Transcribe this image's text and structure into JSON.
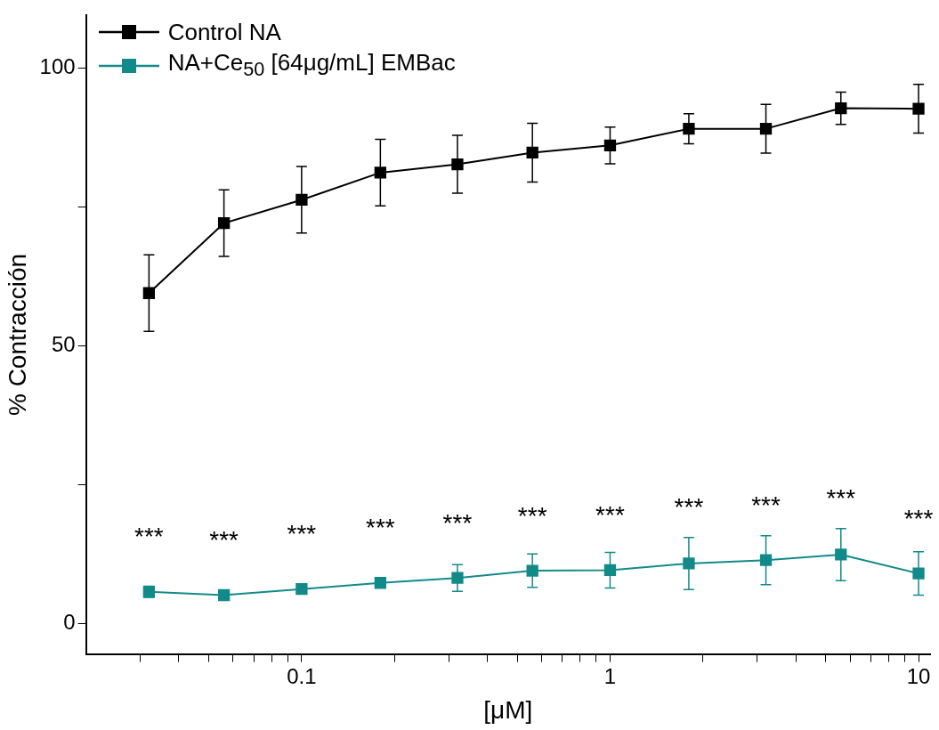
{
  "chart_data": {
    "type": "line",
    "xlabel": "[μM]",
    "ylabel": "% Contracción",
    "log": "x",
    "marker": "square",
    "line_style": "solid",
    "legend": "top left",
    "x": [
      0.032,
      0.056,
      0.1,
      0.18,
      0.32,
      0.56,
      1,
      1.8,
      3.2,
      5.6,
      10
    ],
    "xlim": [
      0.02,
      10.9
    ],
    "xticks": [
      {
        "value": 0.03,
        "label": null
      },
      {
        "value": 0.04,
        "label": null
      },
      {
        "value": 0.05,
        "label": null
      },
      {
        "value": 0.06,
        "label": null
      },
      {
        "value": 0.07,
        "label": null
      },
      {
        "value": 0.08,
        "label": null
      },
      {
        "value": 0.09,
        "label": null
      },
      0.1,
      {
        "value": 0.2,
        "label": null
      },
      {
        "value": 0.3,
        "label": null
      },
      {
        "value": 0.4,
        "label": null
      },
      {
        "value": 0.5,
        "label": null
      },
      {
        "value": 0.6,
        "label": null
      },
      {
        "value": 0.7,
        "label": null
      },
      {
        "value": 0.8,
        "label": null
      },
      {
        "value": 0.9,
        "label": null
      },
      1,
      {
        "value": 2,
        "label": null
      },
      {
        "value": 3,
        "label": null
      },
      {
        "value": 4,
        "label": null
      },
      {
        "value": 5,
        "label": null
      },
      {
        "value": 6,
        "label": null
      },
      {
        "value": 7,
        "label": null
      },
      {
        "value": 8,
        "label": null
      },
      {
        "value": 9,
        "label": null
      },
      10
    ],
    "ylim": [
      -5.5,
      109.5
    ],
    "yticks": [
      0,
      {
        "value": 25,
        "label": null
      },
      50,
      {
        "value": 75,
        "label": null
      },
      100
    ],
    "series": [
      {
        "name": "Control NA",
        "color": "#000000",
        "values": [
          59.5,
          72.1,
          76.3,
          81.2,
          82.7,
          84.8,
          86.1,
          89.1,
          89.1,
          92.8,
          92.7
        ],
        "errors": [
          6.9,
          6,
          6,
          6,
          5.2,
          5.3,
          3.3,
          2.7,
          4.4,
          2.9,
          4.4
        ]
      },
      {
        "name": "NA+Ce$_{50}$ [64μg/mL] EMBac",
        "color": "#138a8a",
        "values": [
          5.7,
          5.1,
          6.2,
          7.3,
          8.2,
          9.5,
          9.6,
          10.8,
          11.4,
          12.4,
          9.0
        ],
        "errors": [
          1,
          null,
          null,
          null,
          2.4,
          3,
          3.2,
          4.7,
          4.4,
          4.7,
          3.9
        ]
      }
    ],
    "annotations": [
      {
        "text": "***",
        "x": 0.032,
        "y": 5.7
      },
      {
        "text": "***",
        "x": 0.056,
        "y": 5.1
      },
      {
        "text": "***",
        "x": 0.1,
        "y": 6.2
      },
      {
        "text": "***",
        "x": 0.18,
        "y": 7.3
      },
      {
        "text": "***",
        "x": 0.32,
        "y": 8.2
      },
      {
        "text": "***",
        "x": 0.56,
        "y": 9.5
      },
      {
        "text": "***",
        "x": 1,
        "y": 9.6
      },
      {
        "text": "***",
        "x": 1.8,
        "y": 10.8
      },
      {
        "text": "***",
        "x": 3.2,
        "y": 11.4
      },
      {
        "text": "***",
        "x": 5.6,
        "y": 12.4
      },
      {
        "text": "***",
        "x": 10,
        "y": 9.0
      }
    ]
  }
}
